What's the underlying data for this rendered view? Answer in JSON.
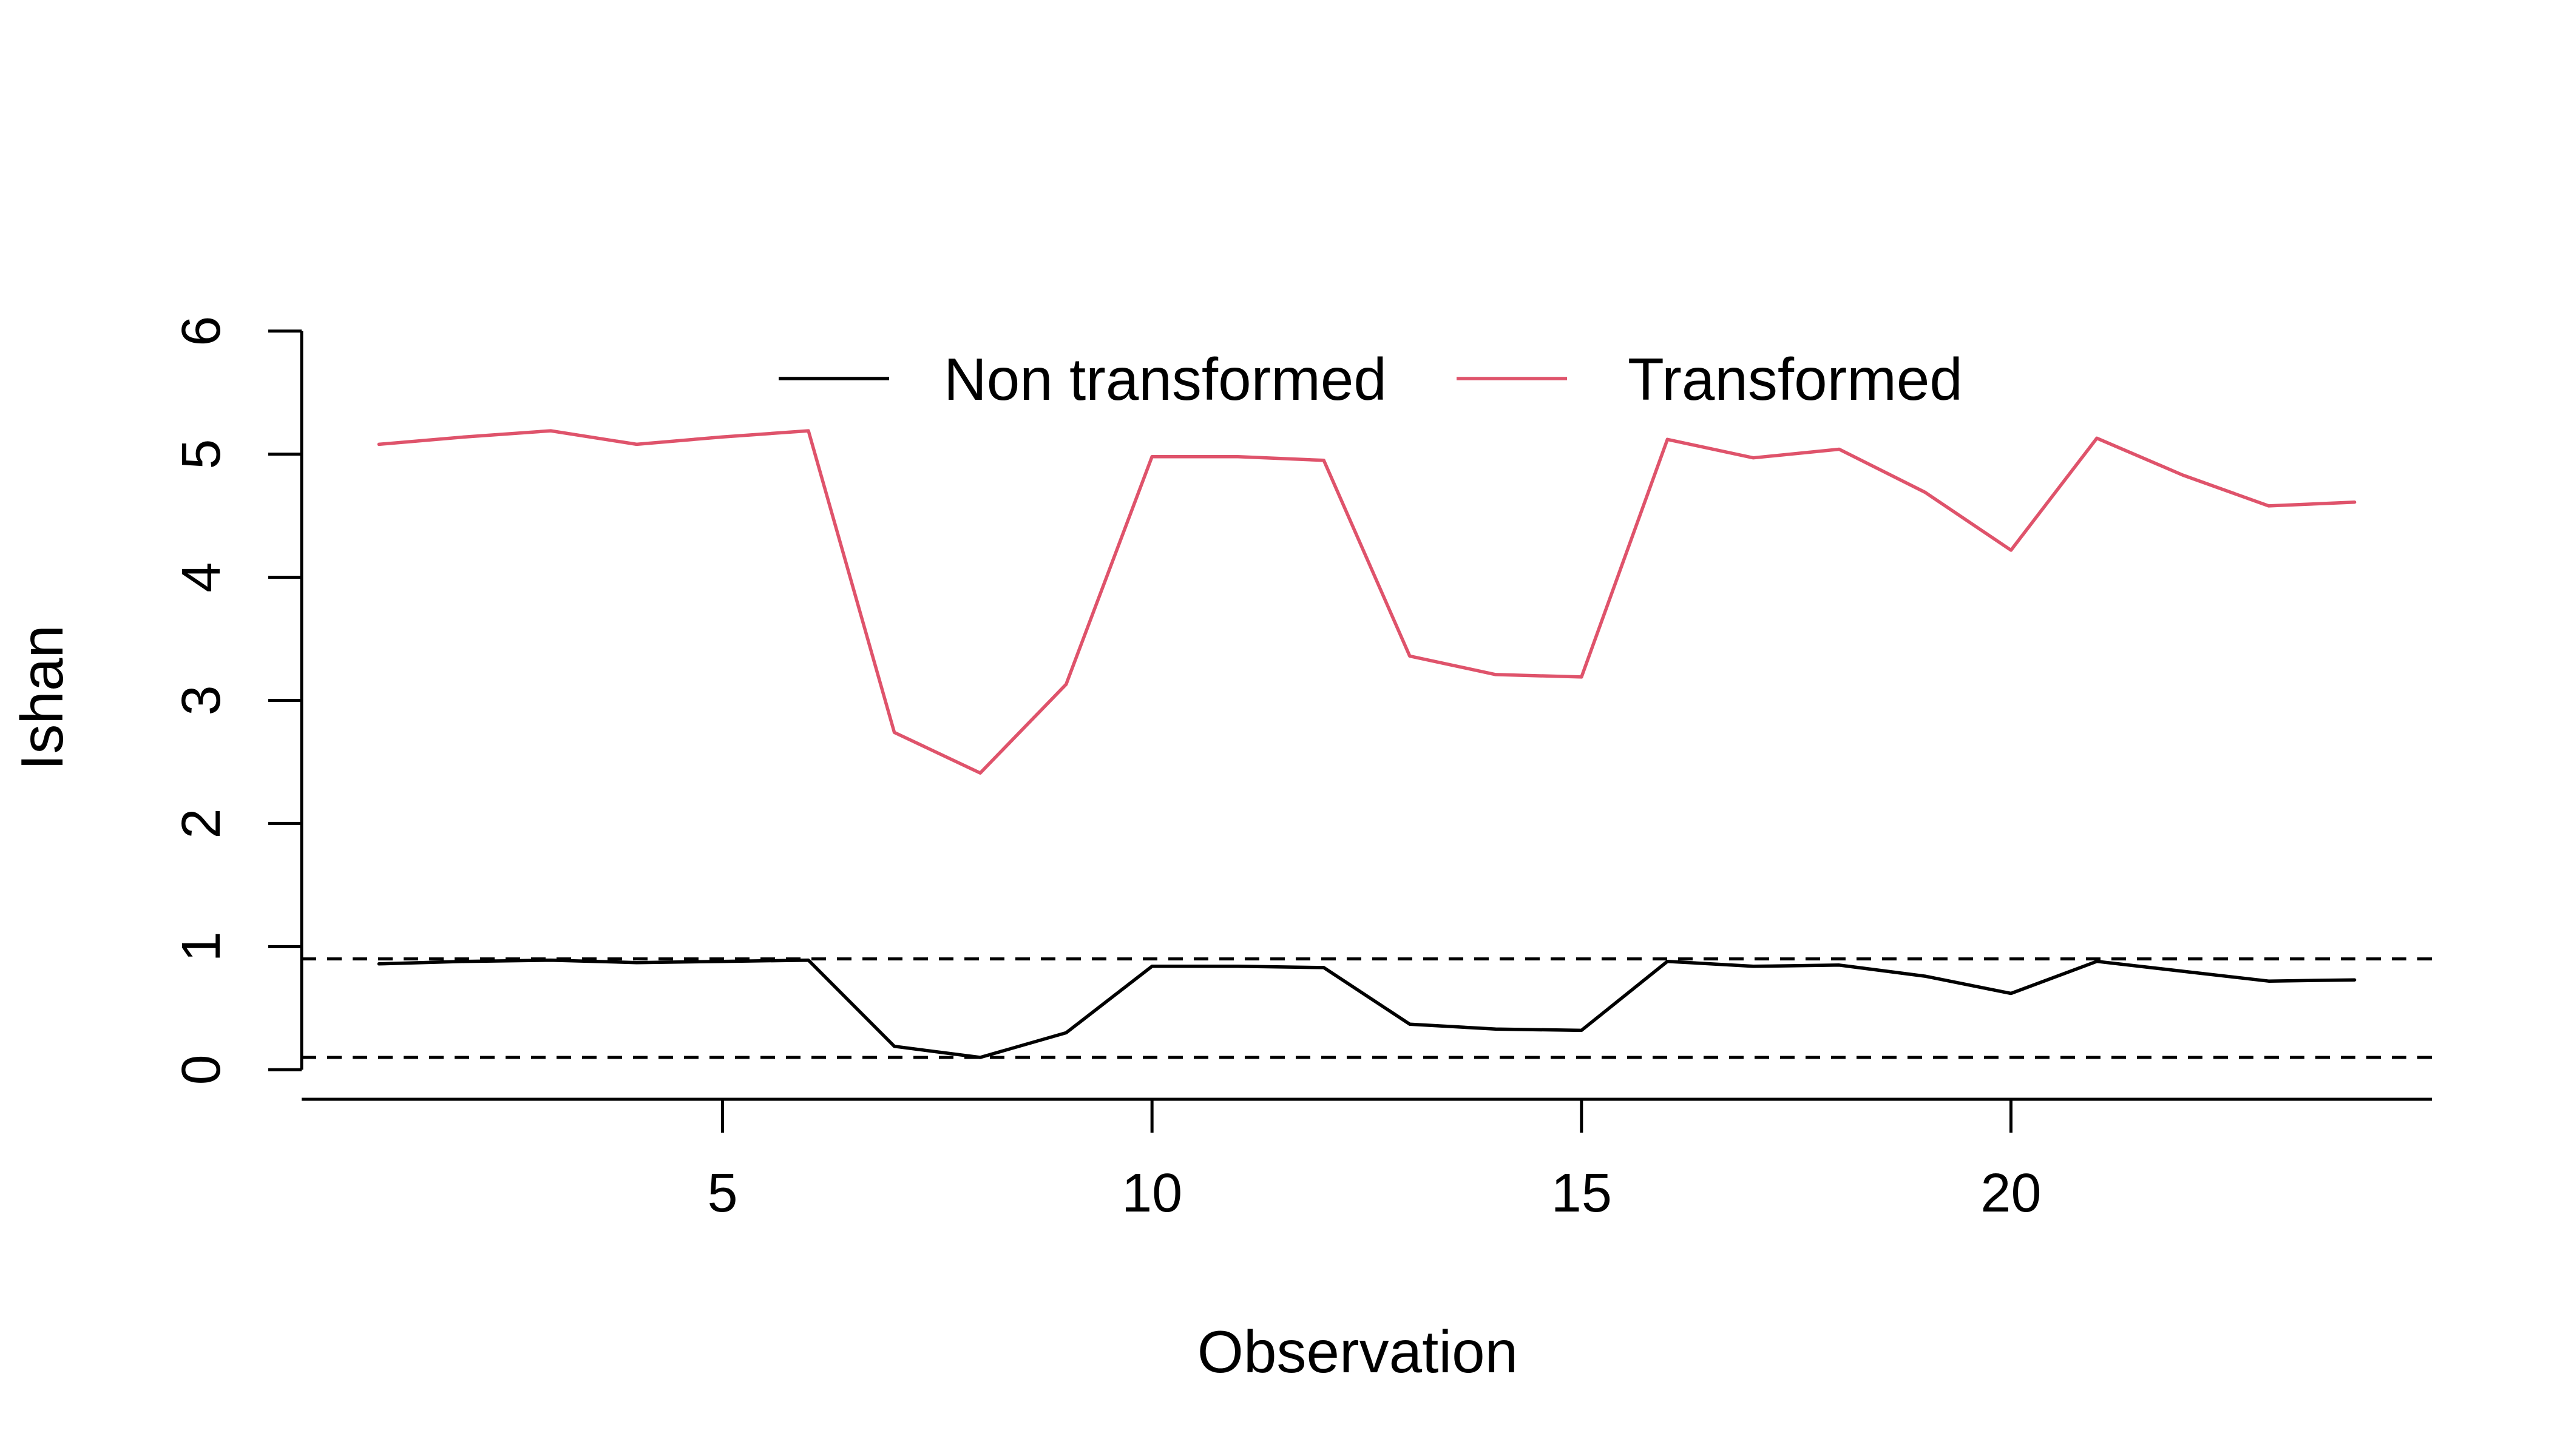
{
  "chart_data": {
    "type": "line",
    "title": "",
    "xlabel": "Observation",
    "ylabel": "Ishan",
    "xlim": [
      0.1,
      24.9
    ],
    "ylim": [
      -0.24,
      6.24
    ],
    "x_ticks": [
      5,
      10,
      15,
      20
    ],
    "y_ticks": [
      0,
      1,
      2,
      3,
      4,
      5,
      6
    ],
    "reference_lines": [
      {
        "y": 0.9,
        "style": "dashed",
        "color": "#000000"
      },
      {
        "y": 0.1,
        "style": "dashed",
        "color": "#000000"
      }
    ],
    "legend": {
      "position": "top",
      "border": false
    },
    "x": [
      1,
      2,
      3,
      4,
      5,
      6,
      7,
      8,
      9,
      10,
      11,
      12,
      13,
      14,
      15,
      16,
      17,
      18,
      19,
      20,
      21,
      22,
      23,
      24
    ],
    "series": [
      {
        "name": "Non transformed",
        "color": "#000000",
        "values": [
          0.86,
          0.88,
          0.89,
          0.87,
          0.88,
          0.89,
          0.19,
          0.1,
          0.3,
          0.84,
          0.84,
          0.83,
          0.37,
          0.33,
          0.32,
          0.88,
          0.84,
          0.85,
          0.76,
          0.62,
          0.88,
          0.8,
          0.72,
          0.73
        ]
      },
      {
        "name": "Transformed",
        "color": "#DF536B",
        "values": [
          5.08,
          5.14,
          5.19,
          5.08,
          5.14,
          5.19,
          2.74,
          2.41,
          3.13,
          4.98,
          4.98,
          4.95,
          3.36,
          3.21,
          3.19,
          5.12,
          4.97,
          5.04,
          4.69,
          4.22,
          5.13,
          4.83,
          4.58,
          4.61
        ]
      }
    ]
  }
}
